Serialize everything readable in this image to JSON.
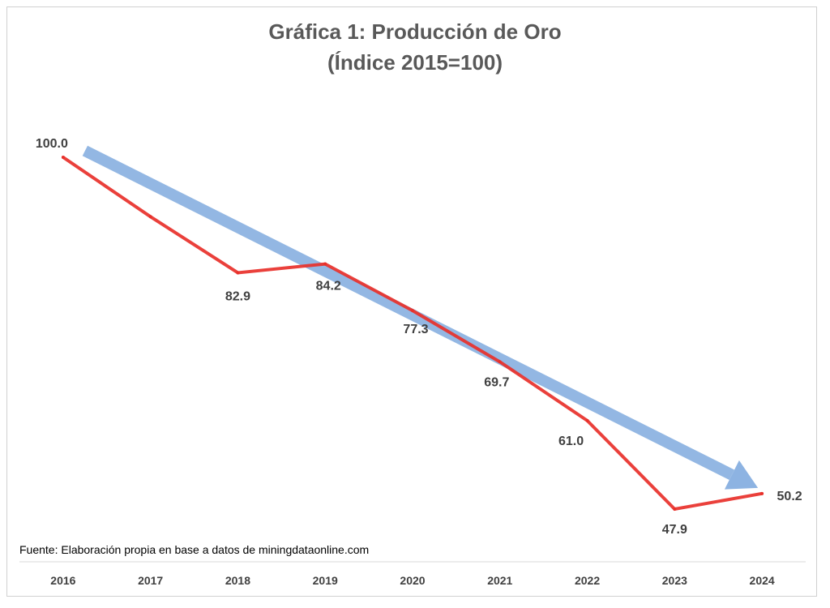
{
  "chart_data": {
    "type": "line",
    "title": "Gráfica 1: Producción de Oro",
    "subtitle": "(Índice 2015=100)",
    "categories": [
      "2016",
      "2017",
      "2018",
      "2019",
      "2020",
      "2021",
      "2022",
      "2023",
      "2024"
    ],
    "series": [
      {
        "color": "#e8302a",
        "values": [
          100.0,
          91.2,
          82.9,
          84.2,
          77.3,
          69.7,
          61.0,
          47.9,
          50.2
        ],
        "labels": [
          "100.0",
          null,
          "82.9",
          "84.2",
          "77.3",
          "69.7",
          "61.0",
          "47.9",
          "50.2"
        ]
      }
    ],
    "trend_arrow": {
      "from_value": 100.0,
      "to_value": 50.2,
      "color": "#8db3e2"
    },
    "source": "Fuente: Elaboración propia en base a datos de miningdataonline.com",
    "grid": false
  }
}
